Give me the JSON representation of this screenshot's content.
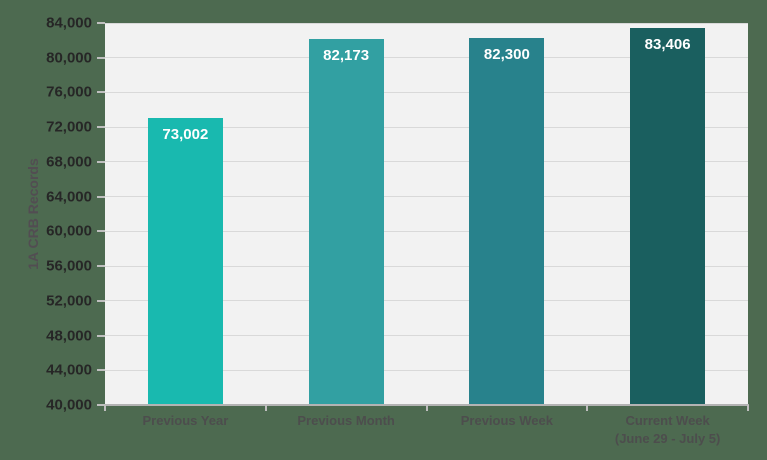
{
  "page_background_color": "#4d6a50",
  "chart_data": {
    "type": "bar",
    "title": "",
    "xlabel": "",
    "ylabel": "1A CRB Records",
    "categories": [
      {
        "label": "Previous Year",
        "sublabel": ""
      },
      {
        "label": "Previous Month",
        "sublabel": ""
      },
      {
        "label": "Previous Week",
        "sublabel": ""
      },
      {
        "label": "Current Week",
        "sublabel": "(June 29 - July 5)"
      }
    ],
    "values": [
      73002,
      82173,
      82300,
      83406
    ],
    "value_labels": [
      "73,002",
      "82,173",
      "82,300",
      "83,406"
    ],
    "bar_colors": [
      "#19b9af",
      "#32a0a2",
      "#28828c",
      "#1a5f5f"
    ],
    "ylim": [
      40000,
      84000
    ],
    "ytick_step": 4000,
    "ytick_values": [
      40000,
      44000,
      48000,
      52000,
      56000,
      60000,
      64000,
      68000,
      72000,
      76000,
      80000,
      84000
    ],
    "ytick_labels": [
      "40,000",
      "44,000",
      "48,000",
      "52,000",
      "56,000",
      "60,000",
      "64,000",
      "68,000",
      "72,000",
      "76,000",
      "80,000",
      "84,000"
    ],
    "grid": true,
    "legend": false,
    "styles": {
      "plot_background": "#f2f2f2",
      "gridline_color": "#d9d9d9",
      "axis_line_color": "#b3b3b3",
      "tick_mark_color": "#bfbfbf",
      "ytick_label_color": "#262626",
      "ylabel_color": "#524d52",
      "category_label_color": "#4d4d4d",
      "value_label_color": "#ffffff"
    }
  }
}
